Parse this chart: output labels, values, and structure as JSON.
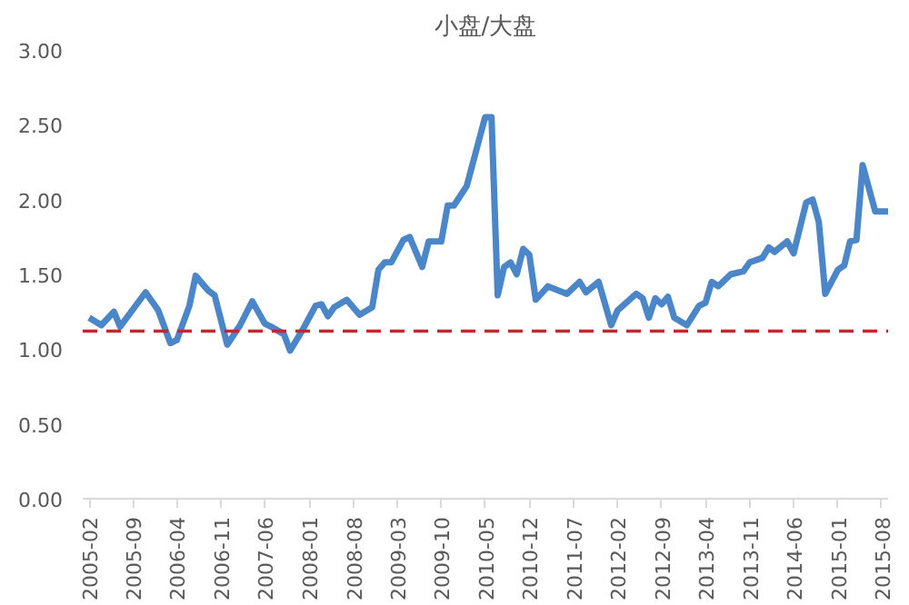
{
  "chart_data": {
    "type": "line",
    "title": "小盘/大盘",
    "x": [
      "2005-02",
      "2005-04",
      "2005-06",
      "2005-07",
      "2005-11",
      "2006-01",
      "2006-03",
      "2006-04",
      "2006-06",
      "2006-07",
      "2006-09",
      "2006-10",
      "2006-12",
      "2007-02",
      "2007-04",
      "2007-06",
      "2007-07",
      "2007-09",
      "2007-10",
      "2007-12",
      "2008-02",
      "2008-03",
      "2008-04",
      "2008-05",
      "2008-07",
      "2008-09",
      "2008-11",
      "2008-12",
      "2009-01",
      "2009-02",
      "2009-04",
      "2009-05",
      "2009-07",
      "2009-08",
      "2009-10",
      "2009-11",
      "2009-12",
      "2010-02",
      "2010-05",
      "2010-06",
      "2010-07",
      "2010-08",
      "2010-09",
      "2010-10",
      "2010-11",
      "2010-12",
      "2011-01",
      "2011-03",
      "2011-06",
      "2011-08",
      "2011-09",
      "2011-11",
      "2012-01",
      "2012-02",
      "2012-05",
      "2012-06",
      "2012-07",
      "2012-08",
      "2012-09",
      "2012-10",
      "2012-11",
      "2013-01",
      "2013-03",
      "2013-04",
      "2013-05",
      "2013-06",
      "2013-08",
      "2013-10",
      "2013-11",
      "2014-01",
      "2014-02",
      "2014-03",
      "2014-05",
      "2014-06",
      "2014-08",
      "2014-09",
      "2014-10",
      "2014-11",
      "2015-01",
      "2015-02",
      "2015-03",
      "2015-04",
      "2015-05",
      "2015-07",
      "2015-08",
      "2015-09"
    ],
    "series": [
      {
        "color": "#4a86c8",
        "values": [
          1.21,
          1.16,
          1.25,
          1.15,
          1.38,
          1.26,
          1.04,
          1.06,
          1.29,
          1.49,
          1.39,
          1.36,
          1.03,
          1.16,
          1.32,
          1.17,
          1.15,
          1.1,
          0.99,
          1.13,
          1.29,
          1.3,
          1.22,
          1.28,
          1.33,
          1.23,
          1.28,
          1.53,
          1.58,
          1.58,
          1.73,
          1.75,
          1.55,
          1.72,
          1.72,
          1.96,
          1.96,
          2.09,
          2.55,
          2.55,
          1.36,
          1.55,
          1.58,
          1.5,
          1.67,
          1.63,
          1.33,
          1.42,
          1.37,
          1.45,
          1.38,
          1.45,
          1.16,
          1.26,
          1.37,
          1.34,
          1.21,
          1.34,
          1.3,
          1.35,
          1.21,
          1.16,
          1.29,
          1.31,
          1.45,
          1.42,
          1.5,
          1.52,
          1.58,
          1.61,
          1.68,
          1.65,
          1.72,
          1.64,
          1.98,
          2.0,
          1.85,
          1.37,
          1.53,
          1.56,
          1.72,
          1.73,
          2.23,
          1.92,
          1.92,
          1.92
        ]
      }
    ],
    "xlim": [
      "2005-01",
      "2015-09"
    ],
    "xticks": [
      "2005-02",
      "2005-09",
      "2006-04",
      "2006-11",
      "2007-06",
      "2008-01",
      "2008-08",
      "2009-03",
      "2009-10",
      "2010-05",
      "2010-12",
      "2011-07",
      "2012-02",
      "2012-09",
      "2013-04",
      "2013-11",
      "2014-06",
      "2015-01",
      "2015-08"
    ],
    "ylim": [
      0,
      3
    ],
    "yticks": [
      {
        "value": 0,
        "label": "0.00"
      },
      {
        "value": 0.5,
        "label": "0.50"
      },
      {
        "value": 1,
        "label": "1.00"
      },
      {
        "value": 1.5,
        "label": "1.50"
      },
      {
        "value": 2,
        "label": "2.00"
      },
      {
        "value": 2.5,
        "label": "2.50"
      },
      {
        "value": 3,
        "label": "3.00"
      }
    ],
    "ref_lines": [
      {
        "axis": "y",
        "value": 1.12,
        "color": "#c0282d",
        "line_style": "dashed"
      }
    ],
    "grid": false,
    "marker": "none",
    "line_style": "solid"
  }
}
